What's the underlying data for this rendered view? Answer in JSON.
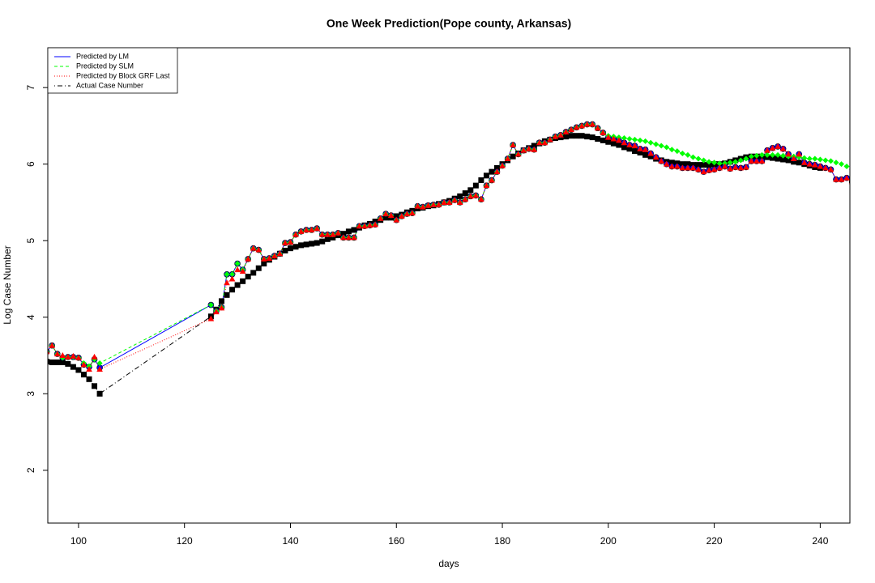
{
  "chart_data": {
    "type": "line",
    "title": "One Week Prediction(Pope county, Arkansas)",
    "x_label": "days",
    "y_label": "Log Case Number",
    "xlim": [
      94.2,
      245.6
    ],
    "ylim": [
      1.31,
      7.52
    ],
    "xticks": [
      100,
      120,
      140,
      160,
      180,
      200,
      220,
      240
    ],
    "yticks": [
      2,
      3,
      4,
      5,
      6,
      7
    ],
    "legend": "top-left",
    "x": [
      94,
      95,
      96,
      97,
      98,
      99,
      100,
      101,
      102,
      103,
      104,
      125,
      126,
      127,
      128,
      129,
      130,
      131,
      132,
      133,
      134,
      135,
      136,
      137,
      138,
      139,
      140,
      141,
      142,
      143,
      144,
      145,
      146,
      147,
      148,
      149,
      150,
      151,
      152,
      153,
      154,
      155,
      156,
      157,
      158,
      159,
      160,
      161,
      162,
      163,
      164,
      165,
      166,
      167,
      168,
      169,
      170,
      171,
      172,
      173,
      174,
      175,
      176,
      177,
      178,
      179,
      180,
      181,
      182,
      183,
      184,
      185,
      186,
      187,
      188,
      189,
      190,
      191,
      192,
      193,
      194,
      195,
      196,
      197,
      198,
      199,
      200,
      201,
      202,
      203,
      204,
      205,
      206,
      207,
      208,
      209,
      210,
      211,
      212,
      213,
      214,
      215,
      216,
      217,
      218,
      219,
      220,
      221,
      222,
      223,
      224,
      225,
      226,
      227,
      228,
      229,
      230,
      231,
      232,
      233,
      234,
      235,
      236,
      237,
      238,
      239,
      240,
      241,
      242,
      243,
      244,
      245,
      246
    ],
    "series": [
      {
        "name": "Actual Case Number",
        "color": "#000000",
        "dash": "dotdash",
        "marker": "square",
        "values": [
          3.42,
          3.41,
          3.41,
          3.41,
          3.39,
          3.35,
          3.31,
          3.25,
          3.19,
          3.1,
          3.0,
          4.01,
          4.1,
          4.21,
          4.29,
          4.36,
          4.42,
          4.47,
          4.53,
          4.58,
          4.64,
          4.7,
          4.75,
          4.79,
          4.83,
          4.87,
          4.9,
          4.92,
          4.94,
          4.95,
          4.96,
          4.97,
          4.99,
          5.02,
          5.04,
          5.07,
          5.09,
          5.12,
          5.14,
          5.17,
          5.2,
          5.22,
          5.25,
          5.27,
          5.3,
          5.3,
          5.32,
          5.34,
          5.37,
          5.39,
          5.42,
          5.43,
          5.45,
          5.46,
          5.48,
          5.5,
          5.52,
          5.55,
          5.58,
          5.62,
          5.66,
          5.72,
          5.79,
          5.85,
          5.9,
          5.95,
          6.0,
          6.05,
          6.1,
          6.14,
          6.18,
          6.21,
          6.24,
          6.27,
          6.3,
          6.32,
          6.34,
          6.35,
          6.36,
          6.37,
          6.37,
          6.37,
          6.36,
          6.35,
          6.33,
          6.31,
          6.29,
          6.27,
          6.25,
          6.22,
          6.2,
          6.17,
          6.15,
          6.12,
          6.1,
          6.07,
          6.05,
          6.03,
          6.02,
          6.01,
          6.0,
          6.0,
          5.99,
          5.99,
          5.99,
          5.99,
          6.0,
          6.0,
          6.01,
          6.03,
          6.05,
          6.07,
          6.09,
          6.1,
          6.1,
          6.1,
          6.09,
          6.08,
          6.07,
          6.06,
          6.05,
          6.03,
          6.02,
          6.0,
          5.98,
          5.96,
          5.95,
          null,
          null,
          null,
          null,
          null,
          null
        ]
      },
      {
        "name": "Predicted by LM",
        "color": "#0000ff",
        "dash": "solid",
        "marker": "circle",
        "values": [
          3.55,
          3.63,
          3.52,
          3.47,
          3.48,
          3.48,
          3.47,
          3.38,
          3.35,
          3.45,
          3.34,
          4.16,
          4.08,
          4.13,
          4.56,
          4.56,
          4.7,
          4.62,
          4.76,
          4.9,
          4.88,
          4.76,
          4.77,
          4.8,
          4.83,
          4.97,
          4.98,
          5.08,
          5.12,
          5.14,
          5.14,
          5.16,
          5.08,
          5.08,
          5.08,
          5.1,
          5.04,
          5.04,
          5.04,
          5.19,
          5.19,
          5.2,
          5.21,
          5.29,
          5.35,
          5.33,
          5.27,
          5.32,
          5.35,
          5.36,
          5.45,
          5.44,
          5.46,
          5.47,
          5.47,
          5.5,
          5.5,
          5.53,
          5.5,
          5.54,
          5.58,
          5.59,
          5.54,
          5.72,
          5.79,
          5.9,
          5.98,
          6.07,
          6.25,
          6.13,
          6.18,
          6.2,
          6.19,
          6.28,
          6.28,
          6.32,
          6.36,
          6.38,
          6.42,
          6.45,
          6.48,
          6.5,
          6.52,
          6.52,
          6.47,
          6.41,
          6.35,
          6.33,
          6.31,
          6.28,
          6.25,
          6.24,
          6.2,
          6.19,
          6.14,
          6.09,
          6.04,
          6.0,
          5.97,
          5.97,
          5.95,
          5.95,
          5.95,
          5.93,
          5.9,
          5.92,
          5.93,
          5.95,
          5.97,
          5.94,
          5.96,
          5.95,
          5.96,
          6.04,
          6.04,
          6.04,
          6.18,
          6.21,
          6.23,
          6.2,
          6.13,
          6.07,
          6.13,
          6.02,
          6.0,
          5.99,
          5.97,
          5.95,
          5.93,
          5.8,
          5.8,
          5.82,
          5.77
        ]
      },
      {
        "name": "Predicted by SLM",
        "color": "#00ff00",
        "dash": "dashed",
        "marker": "diamond",
        "values": [
          3.55,
          3.63,
          3.52,
          3.47,
          3.48,
          3.48,
          3.47,
          3.4,
          3.36,
          3.45,
          3.4,
          4.16,
          4.08,
          4.13,
          4.56,
          4.56,
          4.7,
          4.62,
          4.76,
          4.9,
          4.88,
          4.76,
          4.77,
          4.8,
          4.83,
          4.97,
          4.98,
          5.08,
          5.12,
          5.14,
          5.14,
          5.16,
          5.08,
          5.08,
          5.08,
          5.1,
          5.04,
          5.04,
          5.04,
          5.19,
          5.19,
          5.2,
          5.21,
          5.29,
          5.35,
          5.33,
          5.27,
          5.32,
          5.35,
          5.36,
          5.45,
          5.44,
          5.46,
          5.47,
          5.47,
          5.5,
          5.5,
          5.53,
          5.5,
          5.54,
          5.58,
          5.59,
          5.54,
          5.72,
          5.79,
          5.9,
          5.98,
          6.07,
          6.25,
          6.13,
          6.18,
          6.2,
          6.19,
          6.28,
          6.28,
          6.32,
          6.36,
          6.38,
          6.42,
          6.45,
          6.48,
          6.5,
          6.52,
          6.52,
          6.47,
          6.41,
          6.37,
          6.36,
          6.35,
          6.34,
          6.33,
          6.32,
          6.31,
          6.3,
          6.28,
          6.26,
          6.24,
          6.22,
          6.19,
          6.17,
          6.14,
          6.12,
          6.09,
          6.07,
          6.05,
          6.03,
          6.02,
          6.01,
          6.01,
          6.02,
          6.03,
          6.05,
          6.07,
          6.1,
          6.11,
          6.12,
          6.12,
          6.12,
          6.12,
          6.11,
          6.1,
          6.1,
          6.09,
          6.08,
          6.07,
          6.07,
          6.06,
          6.05,
          6.04,
          6.02,
          6.0,
          5.97,
          5.93
        ]
      },
      {
        "name": "Predicted by Block GRF Last",
        "color": "#ff0000",
        "dash": "dotted",
        "marker": "triangle",
        "values": [
          3.55,
          3.63,
          3.52,
          3.5,
          3.48,
          3.49,
          3.47,
          3.38,
          3.32,
          3.48,
          3.32,
          3.98,
          4.07,
          4.12,
          4.45,
          4.5,
          4.62,
          4.6,
          4.76,
          4.9,
          4.88,
          4.76,
          4.77,
          4.8,
          4.83,
          4.97,
          4.98,
          5.08,
          5.12,
          5.14,
          5.14,
          5.16,
          5.08,
          5.08,
          5.08,
          5.1,
          5.04,
          5.04,
          5.04,
          5.19,
          5.19,
          5.2,
          5.21,
          5.29,
          5.35,
          5.33,
          5.27,
          5.32,
          5.35,
          5.36,
          5.45,
          5.44,
          5.46,
          5.47,
          5.47,
          5.5,
          5.5,
          5.53,
          5.5,
          5.54,
          5.58,
          5.59,
          5.54,
          5.72,
          5.79,
          5.9,
          5.98,
          6.07,
          6.25,
          6.13,
          6.18,
          6.2,
          6.19,
          6.28,
          6.28,
          6.32,
          6.36,
          6.38,
          6.42,
          6.45,
          6.48,
          6.5,
          6.52,
          6.52,
          6.47,
          6.41,
          6.35,
          6.33,
          6.31,
          6.28,
          6.25,
          6.24,
          6.2,
          6.19,
          6.14,
          6.09,
          6.04,
          6.0,
          5.97,
          5.97,
          5.95,
          5.95,
          5.95,
          5.93,
          5.9,
          5.92,
          5.93,
          5.95,
          5.97,
          5.94,
          5.96,
          5.95,
          5.96,
          6.04,
          6.04,
          6.04,
          6.18,
          6.21,
          6.23,
          6.2,
          6.13,
          6.07,
          6.13,
          6.02,
          6.0,
          5.99,
          5.97,
          5.95,
          5.93,
          5.8,
          5.8,
          5.82,
          5.77
        ]
      }
    ]
  }
}
